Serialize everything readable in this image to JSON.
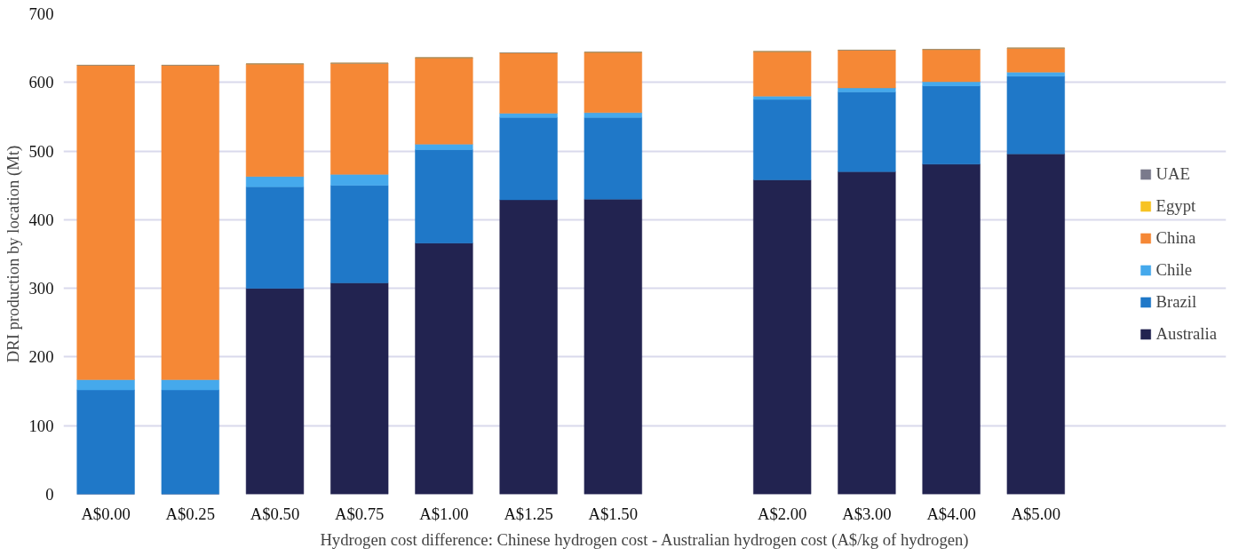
{
  "chart_data": {
    "type": "bar",
    "stacked": true,
    "xlabel": "Hydrogen cost difference: Chinese hydrogen cost - Australian hydrogen cost (A$/kg of hydrogen)",
    "ylabel": "DRI production by location (Mt)",
    "categories": [
      "A$0.00",
      "A$0.25",
      "A$0.50",
      "A$0.75",
      "A$1.00",
      "A$1.25",
      "A$1.50",
      null,
      "A$2.00",
      "A$3.00",
      "A$4.00",
      "A$5.00"
    ],
    "series": [
      {
        "name": "Australia",
        "color": "#222350",
        "values": [
          0,
          0,
          300,
          308,
          366,
          429,
          430,
          null,
          458,
          470,
          481,
          496
        ]
      },
      {
        "name": "Brazil",
        "color": "#1f78c8",
        "values": [
          152,
          152,
          148,
          142,
          136,
          120,
          119,
          null,
          117,
          116,
          114,
          113
        ]
      },
      {
        "name": "Chile",
        "color": "#45a9ec",
        "values": [
          15,
          15,
          15,
          16,
          8,
          6,
          7,
          null,
          5,
          6,
          6,
          6
        ]
      },
      {
        "name": "China",
        "color": "#f58836",
        "values": [
          458,
          458,
          164,
          162,
          126,
          88,
          88,
          null,
          65,
          55,
          47,
          35
        ]
      },
      {
        "name": "Egypt",
        "color": "#f7c324",
        "values": [
          0,
          0,
          0,
          0,
          0,
          0,
          0,
          null,
          0,
          0,
          0,
          0
        ]
      },
      {
        "name": "UAE",
        "color": "#7a7a8c",
        "values": [
          0,
          0,
          0,
          0,
          0,
          0,
          0,
          null,
          0,
          0,
          0,
          0
        ]
      }
    ],
    "ylim": [
      0,
      700
    ],
    "yticks": [
      0,
      100,
      200,
      300,
      400,
      500,
      600,
      700
    ],
    "grid": "y",
    "legend": "right"
  }
}
